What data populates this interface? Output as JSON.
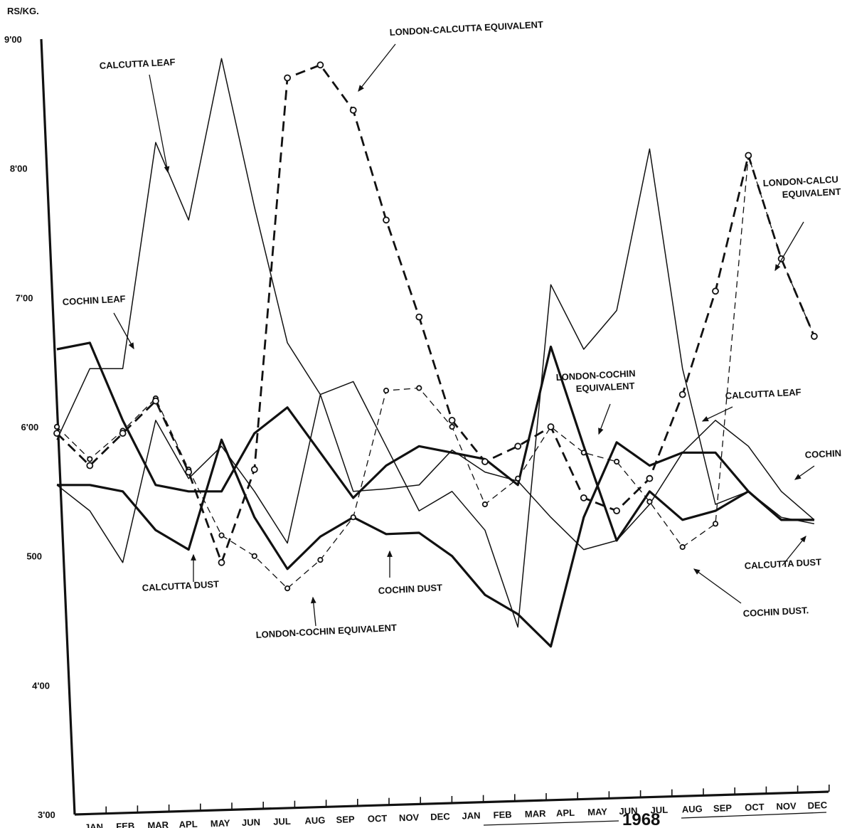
{
  "chart_data": {
    "type": "line",
    "ylabel": "RS/KG.",
    "ylim": [
      3.0,
      9.0
    ],
    "y_ticks": [
      "3'00",
      "4'00",
      "500",
      "6'00",
      "7'00",
      "8'00",
      "9'00"
    ],
    "categories": [
      "JAN",
      "FEB",
      "MAR",
      "APL",
      "MAY",
      "JUN",
      "JUL",
      "AUG",
      "SEP",
      "OCT",
      "NOV",
      "DEC",
      "JAN",
      "FEB",
      "MAR",
      "APL",
      "MAY",
      "JUN",
      "JUL",
      "AUG",
      "SEP",
      "OCT",
      "NOV",
      "DEC"
    ],
    "x_tick_labels": [
      "JAN",
      "FEB",
      "MAR",
      "APL",
      "MAY",
      "JUN",
      "JUL",
      "AUG",
      "SEP",
      "OCT",
      "NOV",
      "DEC",
      "JAN",
      "FEB",
      "MAR",
      "APL",
      "MAY",
      "JUN",
      "JUL",
      "AUG",
      "SEP",
      "OCT",
      "NOV",
      "DEC"
    ],
    "year_label": "1968",
    "series": [
      {
        "name": "CALCUTTA LEAF",
        "style": "thin-solid",
        "color": "#111111",
        "values": [
          5.9,
          6.45,
          6.45,
          8.2,
          7.6,
          8.85,
          7.7,
          6.65,
          6.25,
          6.35,
          5.85,
          5.35,
          5.5,
          5.2,
          4.45,
          7.1,
          6.6,
          6.9,
          8.15,
          6.45,
          5.4,
          5.5,
          5.3,
          5.25
        ]
      },
      {
        "name": "COCHIN LEAF",
        "style": "thick-solid",
        "color": "#111111",
        "values": [
          5.55,
          5.55,
          5.5,
          5.2,
          5.05,
          5.9,
          5.3,
          4.9,
          5.15,
          5.3,
          5.17,
          5.18,
          5.0,
          4.7,
          4.55,
          4.3,
          5.3,
          5.88,
          5.7,
          5.8,
          5.8,
          5.5,
          5.28,
          5.28
        ]
      },
      {
        "name": "CALCUTTA DUST",
        "style": "thin-solid",
        "color": "#111111",
        "values": [
          5.55,
          5.35,
          4.95,
          6.05,
          5.6,
          5.85,
          5.5,
          5.1,
          6.25,
          5.5,
          5.52,
          5.55,
          5.82,
          5.65,
          5.58,
          5.3,
          5.05,
          5.12,
          5.4,
          5.8,
          6.05,
          5.85,
          5.5,
          5.28
        ]
      },
      {
        "name": "COCHIN DUST",
        "style": "thick-solid",
        "color": "#111111",
        "values": [
          6.6,
          6.65,
          6.05,
          5.55,
          5.5,
          5.5,
          5.95,
          6.15,
          5.8,
          5.45,
          5.7,
          5.85,
          5.8,
          5.75,
          5.55,
          6.62,
          5.85,
          5.12,
          5.5,
          5.28,
          5.35,
          5.5,
          5.28,
          5.28
        ]
      },
      {
        "name": "LONDON-CALCUTTA EQUIVALENT",
        "style": "dashed-circles",
        "color": "#111111",
        "values": [
          6.0,
          5.75,
          5.97,
          6.22,
          5.67,
          5.16,
          5.0,
          4.75,
          4.97,
          5.3,
          6.28,
          6.3,
          6.0,
          5.4,
          5.6,
          6.0,
          5.8,
          5.73,
          5.42,
          5.07,
          5.25,
          8.1,
          7.3,
          6.7
        ]
      },
      {
        "name": "LONDON-COCHIN EQUIVALENT",
        "style": "thick-dashed-circles",
        "color": "#111111",
        "values": [
          5.95,
          5.7,
          5.95,
          6.2,
          5.65,
          4.95,
          5.67,
          8.7,
          8.8,
          8.45,
          7.6,
          6.85,
          6.05,
          5.73,
          5.85,
          6.0,
          5.45,
          5.35,
          5.6,
          6.25,
          7.05,
          8.1,
          7.3,
          6.7
        ]
      }
    ],
    "annotations": [
      {
        "text": "LONDON-CALCUTTA EQUIVALENT"
      },
      {
        "text": "CALCUTTA LEAF"
      },
      {
        "text": "LONDON-CALCU"
      },
      {
        "text": "EQUIVALENT"
      },
      {
        "text": "COCHIN LEAF"
      },
      {
        "text": "LONDON-COCHIN"
      },
      {
        "text": "EQUIVALENT"
      },
      {
        "text": "CALCUTTA LEAF"
      },
      {
        "text": "COCHIN"
      },
      {
        "text": "CALCUTTA DUST"
      },
      {
        "text": "COCHIN DUST"
      },
      {
        "text": "CALCUTTA DUST"
      },
      {
        "text": "COCHIN DUST."
      },
      {
        "text": "LONDON-COCHIN EQUIVALENT"
      }
    ],
    "grid": false,
    "legend": "none"
  }
}
